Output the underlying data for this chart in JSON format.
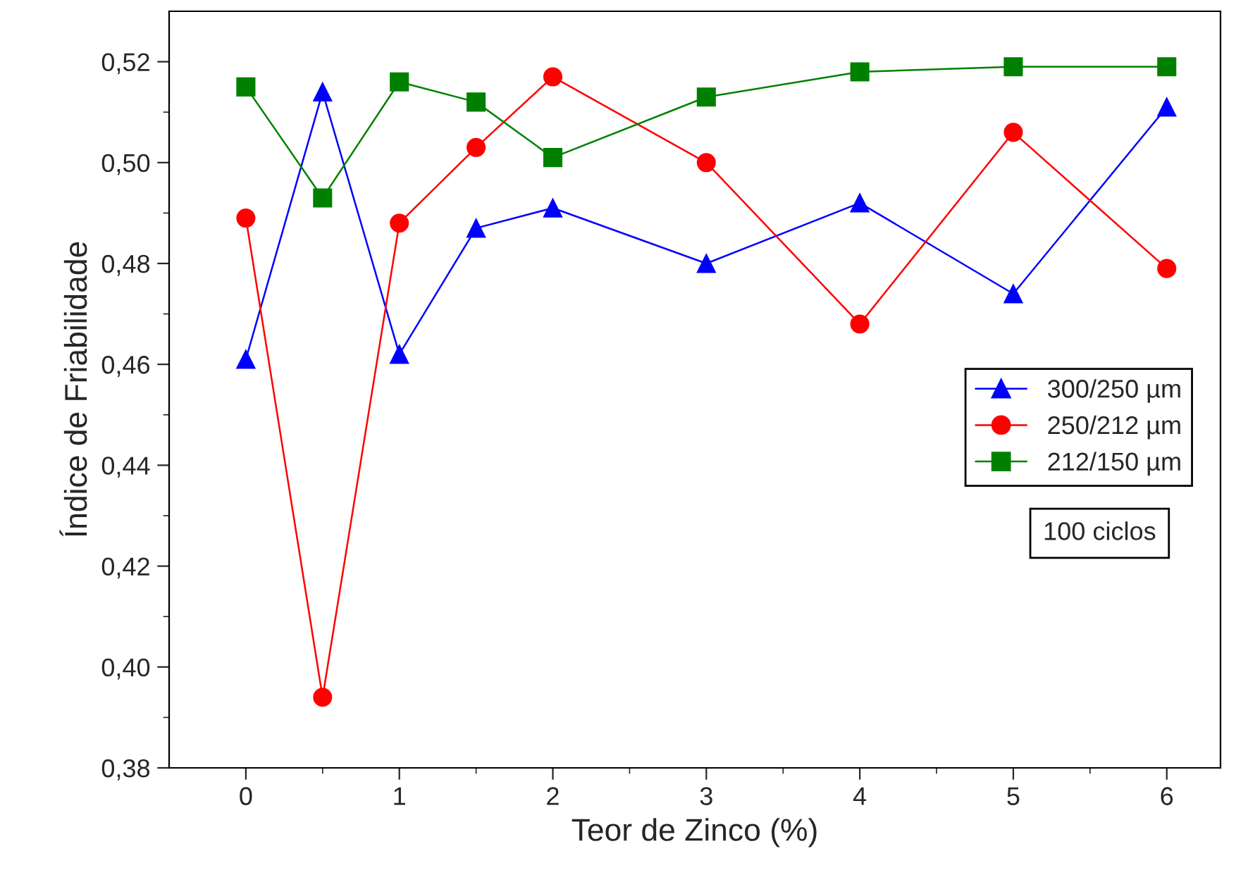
{
  "chart_data": {
    "type": "line",
    "xlabel": "Teor de Zinco (%)",
    "ylabel": "Índice de Friabilidade",
    "x": [
      0,
      0.5,
      1,
      1.5,
      2,
      3,
      4,
      5,
      6
    ],
    "series": [
      {
        "name": "300/250 µm",
        "color": "#0000ff",
        "marker": "triangle",
        "values": [
          0.461,
          0.514,
          0.462,
          0.487,
          0.491,
          0.48,
          0.492,
          0.474,
          0.511
        ]
      },
      {
        "name": "250/212 µm",
        "color": "#ff0000",
        "marker": "circle",
        "values": [
          0.489,
          0.394,
          0.488,
          0.503,
          0.517,
          0.5,
          0.468,
          0.506,
          0.479
        ]
      },
      {
        "name": "212/150 µm",
        "color": "#008000",
        "marker": "square",
        "values": [
          0.515,
          0.493,
          0.516,
          0.512,
          0.501,
          0.513,
          0.518,
          0.519,
          0.519
        ]
      }
    ],
    "xlim": [
      -0.5,
      6.35
    ],
    "ylim": [
      0.38,
      0.53
    ],
    "xticks": [
      0,
      1,
      2,
      3,
      4,
      5,
      6
    ],
    "yticks": [
      {
        "value": 0.38,
        "label": "0,38"
      },
      {
        "value": 0.4,
        "label": "0,40"
      },
      {
        "value": 0.42,
        "label": "0,42"
      },
      {
        "value": 0.44,
        "label": "0,44"
      },
      {
        "value": 0.46,
        "label": "0,46"
      },
      {
        "value": 0.48,
        "label": "0,48"
      },
      {
        "value": 0.5,
        "label": "0,50"
      },
      {
        "value": 0.52,
        "label": "0,52"
      }
    ],
    "grid": false,
    "legend": "right",
    "line_style": "solid",
    "annotations": [
      "100 ciclos"
    ]
  }
}
